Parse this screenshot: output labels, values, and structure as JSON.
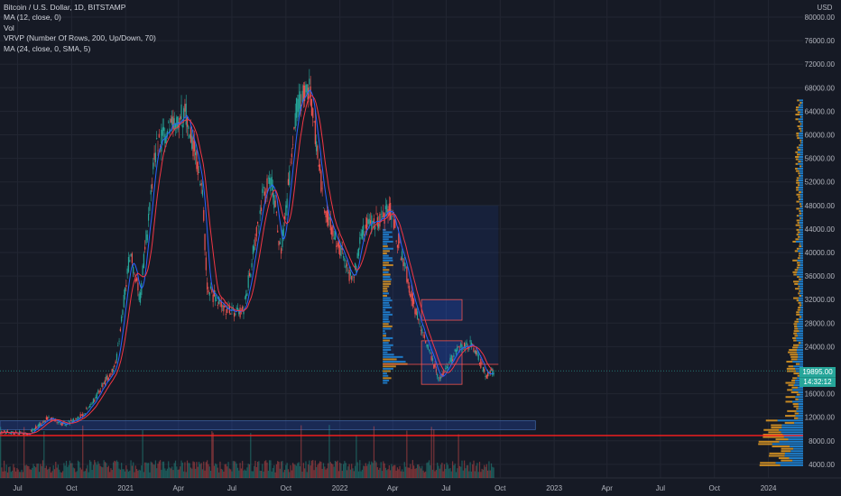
{
  "symbol": {
    "title": "Bitcoin / U.S. Dollar, 1D, BITSTAMP",
    "indicators": [
      "MA (12, close, 0)",
      "Vol",
      "VRVP (Number Of Rows, 200, Up/Down, 70)",
      "MA (24, close, 0, SMA, 5)"
    ]
  },
  "price_axis": {
    "currency": "USD",
    "labels": [
      "80000.00",
      "76000.00",
      "72000.00",
      "68000.00",
      "64000.00",
      "60000.00",
      "56000.00",
      "52000.00",
      "48000.00",
      "44000.00",
      "40000.00",
      "36000.00",
      "32000.00",
      "28000.00",
      "24000.00",
      "16000.00",
      "12000.00",
      "8000.00",
      "4000.00"
    ],
    "last_price": "19895.00",
    "countdown": "14:32:12"
  },
  "time_axis": {
    "labels": [
      "Jul",
      "Oct",
      "2021",
      "Apr",
      "Jul",
      "Oct",
      "2022",
      "Apr",
      "Jul",
      "Oct",
      "2023",
      "Apr",
      "Jul",
      "Oct",
      "2024"
    ]
  },
  "colors": {
    "background": "#161a25",
    "up": "#26a69a",
    "down": "#ef5350",
    "ma_fast": "#2962ff",
    "ma_slow": "#f23645",
    "zone_fill": "#1e3a5f",
    "zone_border": "#2962ff",
    "support_line": "#ff1e1e",
    "profile_up": "#2196f3",
    "profile_down": "#f5a623"
  },
  "chart_data": {
    "type": "candlestick",
    "title": "Bitcoin / U.S. Dollar, 1D, BITSTAMP",
    "ylabel": "USD",
    "ylim": [
      0,
      82000
    ],
    "x_range": [
      "2020-06-01",
      "2024-02-29"
    ],
    "last_price": 19895,
    "price_path": [
      [
        "2020-06-01",
        9500
      ],
      [
        "2020-07-20",
        9200
      ],
      [
        "2020-08-20",
        11800
      ],
      [
        "2020-09-20",
        10800
      ],
      [
        "2020-10-20",
        12400
      ],
      [
        "2020-11-15",
        16000
      ],
      [
        "2020-12-15",
        21000
      ],
      [
        "2021-01-08",
        40000
      ],
      [
        "2021-01-25",
        32000
      ],
      [
        "2021-02-20",
        57000
      ],
      [
        "2021-03-13",
        61000
      ],
      [
        "2021-04-14",
        64000
      ],
      [
        "2021-05-12",
        50000
      ],
      [
        "2021-05-19",
        34000
      ],
      [
        "2021-06-22",
        30000
      ],
      [
        "2021-07-20",
        30000
      ],
      [
        "2021-08-23",
        50000
      ],
      [
        "2021-09-06",
        52000
      ],
      [
        "2021-09-22",
        40000
      ],
      [
        "2021-10-20",
        65000
      ],
      [
        "2021-11-10",
        68000
      ],
      [
        "2021-12-04",
        48000
      ],
      [
        "2022-01-22",
        35000
      ],
      [
        "2022-02-10",
        44000
      ],
      [
        "2022-03-28",
        47000
      ],
      [
        "2022-05-10",
        30000
      ],
      [
        "2022-06-18",
        18500
      ],
      [
        "2022-07-20",
        23500
      ],
      [
        "2022-08-14",
        24500
      ],
      [
        "2022-09-07",
        19000
      ],
      [
        "2022-09-20",
        19895
      ]
    ],
    "moving_averages": [
      {
        "name": "MA (12, close, 0)",
        "color": "#2962ff"
      },
      {
        "name": "MA (24, close, 0, SMA, 5)",
        "color": "#f23645"
      }
    ],
    "zones": [
      {
        "from": "2022-03-15",
        "to": "2022-09-28",
        "low": 21000,
        "high": 48000
      },
      {
        "from": "2022-05-20",
        "to": "2022-07-28",
        "low": 28500,
        "high": 32000
      },
      {
        "from": "2022-05-20",
        "to": "2022-07-28",
        "low": 17600,
        "high": 25000
      },
      {
        "from": "2020-06-01",
        "to": "2022-11-30",
        "low": 9900,
        "high": 11400
      }
    ],
    "horizontal_lines": [
      {
        "price": 8900,
        "color": "#ff1e1e"
      },
      {
        "price": 21000,
        "color": "#ff5252"
      }
    ]
  }
}
